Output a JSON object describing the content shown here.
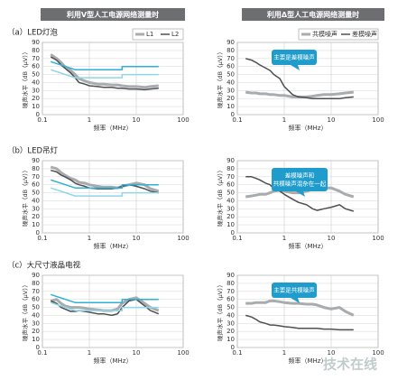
{
  "headers": [
    "利用V型人工电源网络测量时",
    "利用Δ型人工电源网络测量时"
  ],
  "watermark": "技术在线",
  "chart_data": [
    {
      "type": "line",
      "panel_label": "（a）LED灯泡",
      "log_x": true,
      "grid": true,
      "xlabel": "频率（MHz）",
      "ylabel": "噪声水平（dB（μV））",
      "xlim": [
        0.1,
        100
      ],
      "xticks": [
        0.1,
        1,
        10,
        100
      ],
      "ylim": [
        0,
        90
      ],
      "yticks": [
        0,
        10,
        20,
        30,
        40,
        50,
        60,
        70,
        80,
        90
      ],
      "x": [
        0.15,
        0.2,
        0.25,
        0.3,
        0.4,
        0.5,
        0.6,
        0.8,
        1,
        1.5,
        2,
        3,
        4,
        5,
        7,
        10,
        15,
        20,
        30
      ],
      "series": [
        {
          "name": "L1",
          "color": "#a8acae",
          "width": 3,
          "values": [
            75,
            70,
            65,
            60,
            55,
            50,
            45,
            42,
            40,
            38,
            38,
            37,
            37,
            36,
            35,
            35,
            34,
            35,
            36
          ]
        },
        {
          "name": "L2",
          "color": "#4d4f53",
          "width": 1.5,
          "values": [
            72,
            68,
            62,
            58,
            52,
            46,
            40,
            38,
            36,
            35,
            34,
            34,
            33,
            33,
            32,
            32,
            31,
            32,
            33
          ]
        },
        {
          "color": "#2fb0d6",
          "width": 1.5,
          "x": [
            0.15,
            0.5,
            5,
            5,
            30
          ],
          "values": [
            66,
            56,
            56,
            60,
            60
          ]
        },
        {
          "color": "#8fd6ea",
          "width": 1.5,
          "x": [
            0.15,
            0.5,
            5,
            5,
            30
          ],
          "values": [
            56,
            46,
            46,
            50,
            50
          ]
        }
      ]
    },
    {
      "type": "line",
      "log_x": true,
      "grid": true,
      "xlabel": "频率（MHz）",
      "ylabel": "噪声水平（dB（μV））",
      "xlim": [
        0.1,
        100
      ],
      "xticks": [
        0.1,
        1,
        10,
        100
      ],
      "ylim": [
        0,
        90
      ],
      "yticks": [
        0,
        10,
        20,
        30,
        40,
        50,
        60,
        70,
        80,
        90
      ],
      "x": [
        0.15,
        0.2,
        0.25,
        0.3,
        0.4,
        0.5,
        0.6,
        0.8,
        1,
        1.5,
        2,
        3,
        4,
        5,
        7,
        10,
        15,
        20,
        30
      ],
      "annotation": [
        "主要是差模噪声"
      ],
      "series": [
        {
          "name": "共模噪声",
          "color": "#a8acae",
          "width": 3,
          "values": [
            28,
            27,
            27,
            26,
            26,
            25,
            25,
            24,
            24,
            22,
            22,
            22,
            23,
            24,
            25,
            25,
            26,
            27,
            28
          ]
        },
        {
          "name": "差模噪声",
          "color": "#4d4f53",
          "width": 1.5,
          "values": [
            70,
            68,
            65,
            62,
            58,
            55,
            50,
            45,
            35,
            25,
            22,
            21,
            20,
            20,
            20,
            20,
            20,
            21,
            22
          ]
        }
      ]
    },
    {
      "type": "line",
      "panel_label": "（b）LED吊灯",
      "log_x": true,
      "grid": true,
      "xlabel": "频率（MHz）",
      "ylabel": "噪声水平（dB（μV））",
      "xlim": [
        0.1,
        100
      ],
      "xticks": [
        0.1,
        1,
        10,
        100
      ],
      "ylim": [
        0,
        90
      ],
      "yticks": [
        0,
        10,
        20,
        30,
        40,
        50,
        60,
        70,
        80,
        90
      ],
      "x": [
        0.15,
        0.2,
        0.25,
        0.3,
        0.4,
        0.5,
        0.6,
        0.8,
        1,
        1.5,
        2,
        3,
        4,
        5,
        7,
        10,
        15,
        20,
        30
      ],
      "series": [
        {
          "color": "#a8acae",
          "width": 3,
          "values": [
            82,
            80,
            75,
            72,
            68,
            66,
            63,
            62,
            60,
            58,
            57,
            57,
            56,
            58,
            60,
            62,
            60,
            55,
            52
          ]
        },
        {
          "color": "#4d4f53",
          "width": 1.5,
          "values": [
            78,
            76,
            72,
            70,
            66,
            62,
            60,
            58,
            56,
            55,
            55,
            55,
            56,
            58,
            60,
            58,
            55,
            52,
            50
          ]
        },
        {
          "color": "#2fb0d6",
          "width": 1.5,
          "x": [
            0.15,
            0.5,
            5,
            5,
            30
          ],
          "values": [
            66,
            56,
            56,
            60,
            60
          ]
        },
        {
          "color": "#8fd6ea",
          "width": 1.5,
          "x": [
            0.15,
            0.5,
            5,
            5,
            30
          ],
          "values": [
            56,
            46,
            46,
            50,
            50
          ]
        }
      ]
    },
    {
      "type": "line",
      "log_x": true,
      "grid": true,
      "xlabel": "频率（MHz）",
      "ylabel": "噪声水平（dB（μV））",
      "xlim": [
        0.1,
        100
      ],
      "xticks": [
        0.1,
        1,
        10,
        100
      ],
      "ylim": [
        0,
        90
      ],
      "yticks": [
        0,
        10,
        20,
        30,
        40,
        50,
        60,
        70,
        80,
        90
      ],
      "x": [
        0.15,
        0.2,
        0.25,
        0.3,
        0.4,
        0.5,
        0.6,
        0.8,
        1,
        1.5,
        2,
        3,
        4,
        5,
        7,
        10,
        15,
        20,
        30
      ],
      "annotation": [
        "差模噪声和",
        "共模噪声混杂在一起"
      ],
      "series": [
        {
          "color": "#a8acae",
          "width": 3,
          "values": [
            45,
            46,
            47,
            48,
            48,
            50,
            52,
            53,
            52,
            50,
            50,
            52,
            54,
            55,
            56,
            56,
            52,
            48,
            45
          ]
        },
        {
          "color": "#4d4f53",
          "width": 1.5,
          "values": [
            70,
            70,
            68,
            66,
            62,
            60,
            55,
            52,
            48,
            42,
            38,
            35,
            30,
            28,
            30,
            32,
            35,
            30,
            27
          ]
        }
      ]
    },
    {
      "type": "line",
      "panel_label": "（c）大尺寸液晶电视",
      "log_x": true,
      "grid": true,
      "xlabel": "频率（MHz）",
      "ylabel": "噪声水平（dB（μV））",
      "xlim": [
        0.1,
        100
      ],
      "xticks": [
        0.1,
        1,
        10,
        100
      ],
      "ylim": [
        0,
        90
      ],
      "yticks": [
        0,
        10,
        20,
        30,
        40,
        50,
        60,
        70,
        80,
        90
      ],
      "x": [
        0.15,
        0.2,
        0.25,
        0.3,
        0.4,
        0.5,
        0.6,
        0.8,
        1,
        1.5,
        2,
        3,
        4,
        5,
        7,
        10,
        15,
        20,
        30
      ],
      "series": [
        {
          "color": "#a8acae",
          "width": 3,
          "values": [
            58,
            60,
            55,
            52,
            50,
            50,
            50,
            49,
            48,
            47,
            46,
            46,
            48,
            55,
            60,
            62,
            55,
            50,
            46
          ]
        },
        {
          "color": "#4d4f53",
          "width": 1.5,
          "values": [
            58,
            55,
            50,
            48,
            45,
            45,
            46,
            45,
            44,
            42,
            42,
            40,
            42,
            50,
            58,
            60,
            52,
            46,
            42
          ]
        },
        {
          "color": "#2fb0d6",
          "width": 1.5,
          "x": [
            0.15,
            0.5,
            5,
            5,
            30
          ],
          "values": [
            66,
            56,
            56,
            60,
            60
          ]
        },
        {
          "color": "#8fd6ea",
          "width": 1.5,
          "x": [
            0.15,
            0.5,
            5,
            5,
            30
          ],
          "values": [
            56,
            46,
            46,
            50,
            50
          ]
        }
      ]
    },
    {
      "type": "line",
      "log_x": true,
      "grid": true,
      "xlabel": "频率（MHz）",
      "ylabel": "噪声水平（dB（μV））",
      "xlim": [
        0.1,
        100
      ],
      "xticks": [
        0.1,
        1,
        10,
        100
      ],
      "ylim": [
        0,
        90
      ],
      "yticks": [
        0,
        10,
        20,
        30,
        40,
        50,
        60,
        70,
        80,
        90
      ],
      "x": [
        0.15,
        0.2,
        0.25,
        0.3,
        0.4,
        0.5,
        0.6,
        0.8,
        1,
        1.5,
        2,
        3,
        4,
        5,
        7,
        10,
        15,
        20,
        30
      ],
      "annotation": [
        "主要是共模噪声"
      ],
      "series": [
        {
          "color": "#a8acae",
          "width": 3,
          "values": [
            55,
            55,
            56,
            56,
            56,
            58,
            58,
            57,
            56,
            55,
            55,
            54,
            54,
            53,
            50,
            48,
            50,
            45,
            40
          ]
        },
        {
          "color": "#4d4f53",
          "width": 1.5,
          "values": [
            40,
            38,
            35,
            32,
            30,
            28,
            28,
            27,
            26,
            25,
            24,
            24,
            24,
            24,
            23,
            23,
            22,
            22,
            22
          ]
        }
      ]
    }
  ]
}
